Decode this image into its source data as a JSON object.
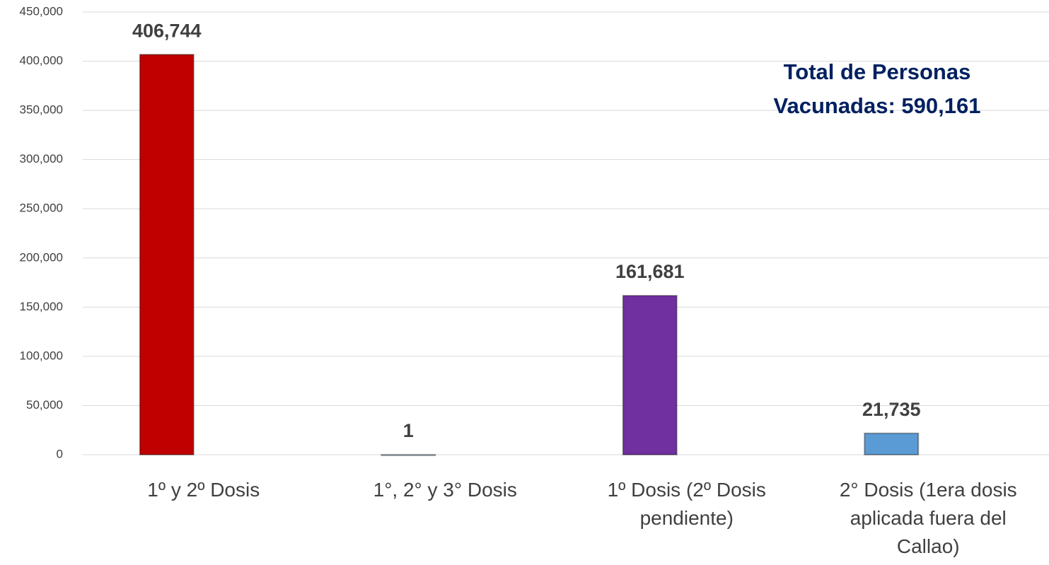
{
  "chart_data": {
    "type": "bar",
    "categories": [
      "1º y 2º Dosis",
      "1°, 2° y 3° Dosis",
      "1º Dosis (2º Dosis pendiente)",
      "2° Dosis (1era dosis aplicada fuera del Callao)"
    ],
    "values": [
      406744,
      1,
      161681,
      21735
    ],
    "value_labels": [
      "406,744",
      "1",
      "161,681",
      "21,735"
    ],
    "colors": [
      "#c00000",
      "#a9cfe0",
      "#7030a0",
      "#5b9bd5"
    ],
    "ylim": [
      0,
      450000
    ],
    "yticks": [
      0,
      {
        "value": 50000,
        "label": "50,000"
      },
      {
        "value": 100000,
        "label": "100,000"
      },
      {
        "value": 150000,
        "label": "150,000"
      },
      {
        "value": 200000,
        "label": "200,000"
      },
      {
        "value": 250000,
        "label": "250,000"
      },
      {
        "value": 300000,
        "label": "300,000"
      },
      {
        "value": 350000,
        "label": "350,000"
      },
      {
        "value": 400000,
        "label": "400,000"
      },
      {
        "value": 450000,
        "label": "450,000"
      }
    ],
    "grid": true,
    "annotation": "Total de Personas Vacunadas: 590,161"
  }
}
